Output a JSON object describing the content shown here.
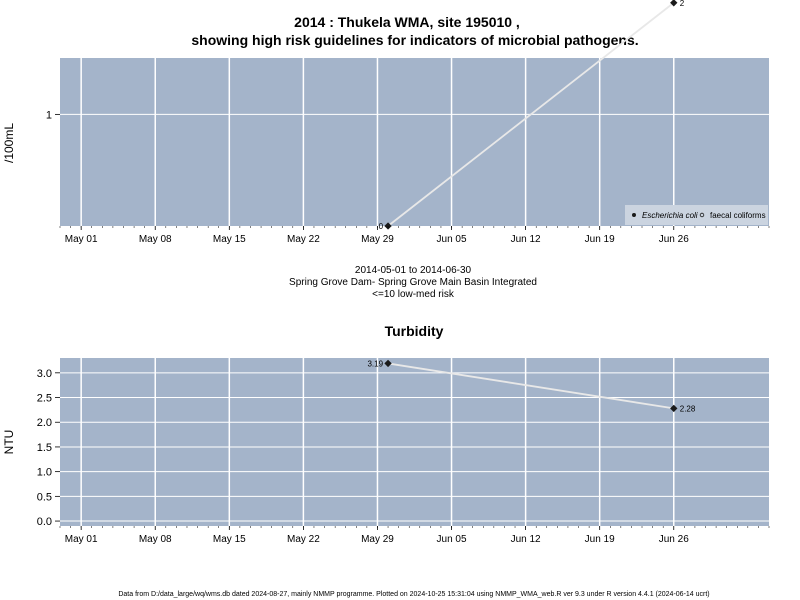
{
  "title_line1": "2014 : Thukela WMA, site 195010 ,",
  "title_line2": "showing high risk guidelines for indicators of microbial pathogens.",
  "middle_text": {
    "date_range": "2014-05-01 to 2014-06-30",
    "site_name": "Spring Grove Dam- Spring Grove Main Basin Integrated",
    "risk_note": "<=10 low-med risk"
  },
  "footer": "Data from D:/data_large/wq/wms.db dated 2024-08-27, mainly NMMP programme. Plotted on 2024-10-25 15:31:04 using NMMP_WMA_web.R ver 9.3 under R version 4.4.1 (2024-06-14 ucrt)",
  "colors": {
    "panel_bg": "#a4b4ca",
    "grid": "#ffffff",
    "line": "#e8e8e8",
    "point": "#1a1a1a"
  },
  "chart_data": [
    {
      "type": "line",
      "title": "",
      "xlabel": "",
      "ylabel": "/100mL",
      "y_scale": "log",
      "x_tick_labels": [
        "May 01",
        "May 08",
        "May 15",
        "May 22",
        "May 29",
        "Jun 05",
        "Jun 12",
        "Jun 19",
        "Jun 26"
      ],
      "x_tick_dates": [
        "2014-05-01",
        "2014-05-08",
        "2014-05-15",
        "2014-05-22",
        "2014-05-29",
        "2014-06-05",
        "2014-06-12",
        "2014-06-19",
        "2014-06-26"
      ],
      "xlim": [
        "2014-04-29",
        "2014-07-05"
      ],
      "y_ticks": [
        {
          "value": 10,
          "label": "1"
        }
      ],
      "ylim": [
        1,
        32
      ],
      "series": [
        {
          "name": "Escherichia coli",
          "points": [
            {
              "x": "2014-05-30",
              "y": 1,
              "label": "0"
            },
            {
              "x": "2014-06-26",
              "y": 100,
              "label": "2"
            }
          ]
        }
      ],
      "legend": {
        "position": "bottom-right",
        "entries": [
          "Escherichia coli",
          "faecal coliforms"
        ]
      }
    },
    {
      "type": "line",
      "title": "Turbidity",
      "xlabel": "",
      "ylabel": "NTU",
      "x_tick_labels": [
        "May 01",
        "May 08",
        "May 15",
        "May 22",
        "May 29",
        "Jun 05",
        "Jun 12",
        "Jun 19",
        "Jun 26"
      ],
      "x_tick_dates": [
        "2014-05-01",
        "2014-05-08",
        "2014-05-15",
        "2014-05-22",
        "2014-05-29",
        "2014-06-05",
        "2014-06-12",
        "2014-06-19",
        "2014-06-26"
      ],
      "xlim": [
        "2014-04-29",
        "2014-07-05"
      ],
      "y_ticks": [
        {
          "value": 0.0,
          "label": "0.0"
        },
        {
          "value": 0.5,
          "label": "0.5"
        },
        {
          "value": 1.0,
          "label": "1.0"
        },
        {
          "value": 1.5,
          "label": "1.5"
        },
        {
          "value": 2.0,
          "label": "2.0"
        },
        {
          "value": 2.5,
          "label": "2.5"
        },
        {
          "value": 3.0,
          "label": "3.0"
        }
      ],
      "ylim": [
        -0.1,
        3.3
      ],
      "series": [
        {
          "name": "",
          "points": [
            {
              "x": "2014-05-30",
              "y": 3.19,
              "label": "3.19"
            },
            {
              "x": "2014-06-26",
              "y": 2.28,
              "label": "2.28"
            }
          ]
        }
      ]
    }
  ]
}
